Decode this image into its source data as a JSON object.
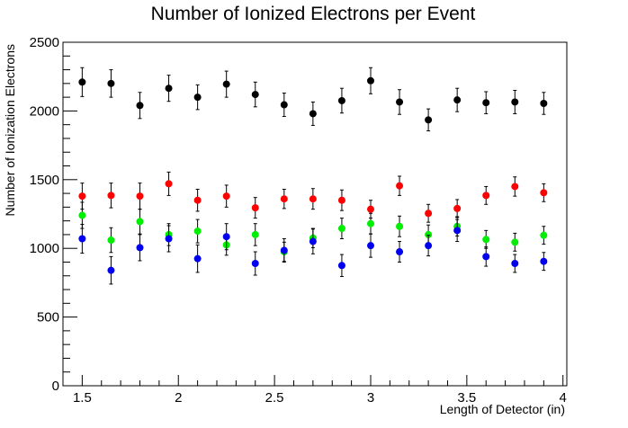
{
  "chart_data": {
    "type": "scatter",
    "title": "Number of Ionized Electrons per Event",
    "xlabel": "Length of Detector (in)",
    "ylabel": "Number of Ionization Electrons",
    "xlim": [
      1.4,
      4.02
    ],
    "ylim": [
      0,
      2500
    ],
    "x_ticks": [
      "1.5",
      "2",
      "2.5",
      "3",
      "3.5",
      "4"
    ],
    "y_ticks": [
      "0",
      "500",
      "1000",
      "1500",
      "2000",
      "2500"
    ],
    "x_tick_values": [
      1.5,
      2,
      2.5,
      3,
      3.5,
      4
    ],
    "y_tick_values": [
      0,
      500,
      1000,
      1500,
      2000,
      2500
    ],
    "grid": false,
    "x": [
      1.5,
      1.65,
      1.8,
      1.95,
      2.1,
      2.25,
      2.4,
      2.55,
      2.7,
      2.85,
      3.0,
      3.15,
      3.3,
      3.45,
      3.6,
      3.75,
      3.9
    ],
    "series": [
      {
        "color": "#000000",
        "values": [
          2210,
          2200,
          2040,
          2165,
          2100,
          2195,
          2120,
          2045,
          1980,
          2075,
          2220,
          2065,
          1935,
          2080,
          2060,
          2065,
          2055
        ],
        "errors": [
          105,
          100,
          95,
          95,
          90,
          95,
          90,
          85,
          85,
          90,
          95,
          90,
          80,
          85,
          80,
          85,
          80
        ]
      },
      {
        "color": "#ff0000",
        "values": [
          1380,
          1385,
          1380,
          1470,
          1350,
          1380,
          1295,
          1360,
          1360,
          1350,
          1285,
          1455,
          1255,
          1290,
          1385,
          1450,
          1405
        ],
        "errors": [
          95,
          90,
          95,
          85,
          80,
          80,
          75,
          70,
          75,
          75,
          65,
          70,
          65,
          65,
          65,
          70,
          65
        ]
      },
      {
        "color": "#00ee00",
        "values": [
          1240,
          1060,
          1195,
          1100,
          1125,
          1025,
          1100,
          975,
          1075,
          1145,
          1180,
          1160,
          1100,
          1160,
          1065,
          1045,
          1095
        ],
        "errors": [
          95,
          90,
          90,
          80,
          85,
          75,
          80,
          70,
          70,
          75,
          75,
          75,
          70,
          70,
          65,
          65,
          65
        ]
      },
      {
        "color": "#0000ee",
        "values": [
          1070,
          840,
          1005,
          1070,
          925,
          1085,
          890,
          985,
          1050,
          875,
          1020,
          975,
          1020,
          1130,
          940,
          890,
          905
        ],
        "errors": [
          105,
          100,
          95,
          95,
          100,
          95,
          85,
          85,
          90,
          80,
          85,
          75,
          75,
          80,
          70,
          65,
          65
        ]
      }
    ]
  }
}
